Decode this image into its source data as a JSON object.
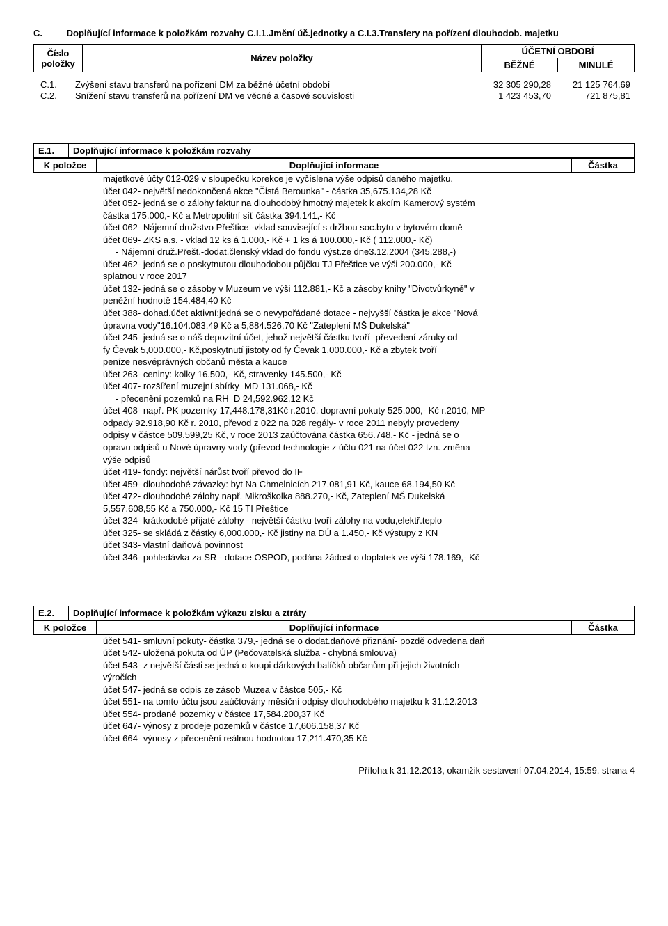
{
  "sectionC": {
    "code": "C.",
    "title": "Doplňující informace k položkám rozvahy C.I.1.Jmění úč.jednotky a C.I.3.Transfery na pořízení dlouhodob. majetku",
    "header": {
      "cislo": "Číslo\npoložky",
      "nazev": "Název položky",
      "obdobi": "ÚČETNÍ OBDOBÍ",
      "bezne": "BĚŽNÉ",
      "minule": "MINULÉ"
    },
    "rows": [
      {
        "c1": "C.1.",
        "c2": "Zvýšení stavu transferů na pořízení DM za běžné účetní období",
        "c3": "32 305 290,28",
        "c4": "21 125 764,69"
      },
      {
        "c1": "C.2.",
        "c2": "Snížení stavu transferů na pořízení DM ve věcné a časové souvislosti",
        "c3": "1 423 453,70",
        "c4": "721 875,81"
      }
    ]
  },
  "sectionE1": {
    "code": "E.1.",
    "title": "Doplňující informace k položkám rozvahy",
    "subhdr": {
      "left": "K položce",
      "mid": "Doplňující informace",
      "right": "Částka"
    },
    "lines": [
      "majetkové účty 012-029 v sloupečku korekce je vyčíslena výše odpisů daného majetku.",
      "účet 042- největší nedokončená akce \"Čistá Berounka\" - částka 35,675.134,28 Kč",
      "účet 052- jedná se o zálohy faktur na dlouhodobý hmotný majetek k akcím Kamerový systém",
      "částka 175.000,- Kč a Metropolitní síť částka 394.141,- Kč",
      "účet 062- Nájemní družstvo Přeštice -vklad související s držbou soc.bytu v bytovém domě",
      "účet 069- ZKS a.s. - vklad 12 ks á 1.000,- Kč + 1 ks á 100.000,- Kč ( 112.000,- Kč)",
      "     - Nájemní druž.Přešt.-dodat.členský vklad do fondu výst.ze dne3.12.2004 (345.288,-)",
      "účet 462- jedná se o poskytnutou dlouhodobou půjčku TJ Přeštice ve výši 200.000,- Kč",
      "splatnou v roce 2017",
      "účet 132- jedná se o zásoby v Muzeum ve výši 112.881,- Kč a zásoby knihy \"Divotvůrkyně\" v",
      "peněžní hodnotě 154.484,40 Kč",
      "účet 388- dohad.účet aktivní:jedná se o nevypořádané dotace - nejvyšší částka je akce \"Nová",
      "úpravna vody\"16.104.083,49 Kč a 5,884.526,70 Kč \"Zateplení MŠ Dukelská\"",
      "účet 245- jedná se o náš depozitní účet, jehož největší částku tvoří -převedení záruky od",
      "fy Čevak 5,000.000,- Kč,poskytnutí jistoty od fy Čevak 1,000.000,- Kč a zbytek tvoří",
      "peníze nesvéprávných občanů města a kauce",
      "účet 263- ceniny: kolky 16.500,- Kč, stravenky 145.500,- Kč",
      "účet 407- rozšíření muzejní sbírky  MD 131.068,- Kč",
      "     - přecenění pozemků na RH  D 24,592.962,12 Kč",
      "účet 408- např. PK pozemky 17,448.178,31Kč r.2010, dopravní pokuty 525.000,- Kč r.2010, MP",
      "odpady 92.918,90 Kč r. 2010, převod z 022 na 028 regály- v roce 2011 nebyly provedeny",
      "odpisy v částce 509.599,25 Kč, v roce 2013 zaúčtována částka 656.748,- Kč - jedná se o",
      "opravu odpisů u Nové úpravny vody (převod technologie z účtu 021 na účet 022 tzn. změna",
      "výše odpisů",
      "účet 419- fondy: největší nárůst tvoří převod do IF",
      "účet 459- dlouhodobé závazky: byt Na Chmelnicích 217.081,91 Kč, kauce 68.194,50 Kč",
      "účet 472- dlouhodobé zálohy např. Mikroškolka 888.270,- Kč, Zateplení MŠ Dukelská",
      "5,557.608,55 Kč a 750.000,- Kč 15 TI Přeštice",
      "účet 324- krátkodobé přijaté zálohy - největší částku tvoří zálohy na vodu,elektř.teplo",
      "účet 325- se skládá z částky 6,000.000,- Kč jistiny na DÚ a 1.450,- Kč výstupy z KN",
      "účet 343- vlastní daňová povinnost",
      "účet 346- pohledávka za SR - dotace OSPOD, podána žádost o doplatek ve výši 178.169,- Kč"
    ]
  },
  "sectionE2": {
    "code": "E.2.",
    "title": "Doplňující informace k položkám výkazu zisku a ztráty",
    "subhdr": {
      "left": "K položce",
      "mid": "Doplňující informace",
      "right": "Částka"
    },
    "lines": [
      "účet 541- smluvní pokuty- částka 379,- jedná se o dodat.daňové přiznání- pozdě odvedena daň",
      "účet 542- uložená pokuta od ÚP (Pečovatelská služba - chybná smlouva)",
      "účet 543- z největší části se jedná o koupi dárkových balíčků občanům při jejich životních",
      "výročích",
      "účet 547- jedná se odpis ze zásob Muzea v částce 505,- Kč",
      "účet 551- na tomto účtu jsou zaúčtovány měsíční odpisy dlouhodobého majetku k 31.12.2013",
      "účet 554- prodané pozemky v částce 17,584.200,37 Kč",
      "účet 647- výnosy z prodeje pozemků v částce 17,606.158,37 Kč",
      "účet 664- výnosy z přecenění reálnou hodnotou 17,211.470,35 Kč"
    ]
  },
  "footer": "Příloha k 31.12.2013, okamžik sestavení 07.04.2014, 15:59, strana 4"
}
